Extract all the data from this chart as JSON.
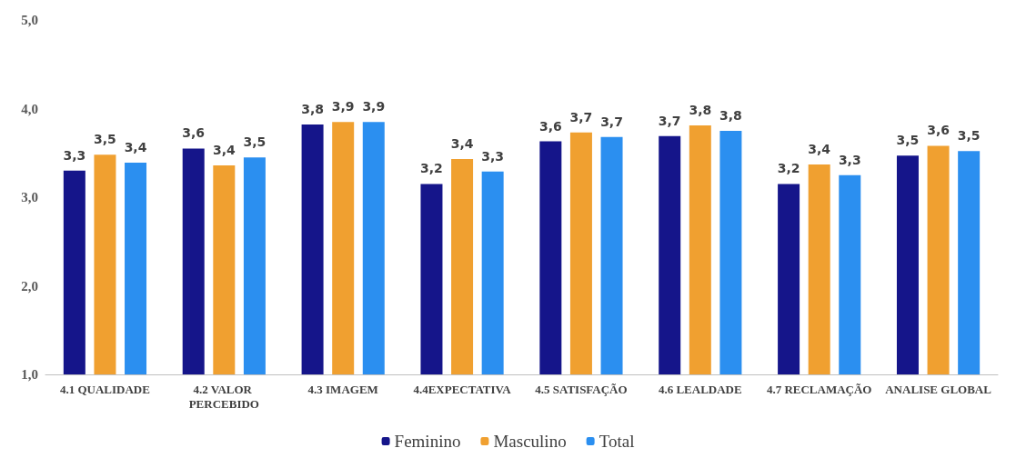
{
  "chart_data": {
    "type": "bar",
    "categories": [
      "4.1 QUALIDADE",
      "4.2 VALOR PERCEBIDO",
      "4.3 IMAGEM",
      "4.4EXPECTATIVA",
      "4.5 SATISFAÇÃO",
      "4.6 LEALDADE",
      "4.7 RECLAMAÇÃO",
      "ANALISE GLOBAL"
    ],
    "series": [
      {
        "name": "Feminino",
        "color": "#15158a",
        "values": [
          3.3,
          3.55,
          3.82,
          3.15,
          3.63,
          3.69,
          3.15,
          3.47
        ],
        "value_labels": [
          "3,3",
          "3,6",
          "3,8",
          "3,2",
          "3,6",
          "3,7",
          "3,2",
          "3,5"
        ]
      },
      {
        "name": "Masculino",
        "color": "#f0a030",
        "values": [
          3.48,
          3.36,
          3.85,
          3.43,
          3.73,
          3.81,
          3.37,
          3.58
        ],
        "value_labels": [
          "3,5",
          "3,4",
          "3,9",
          "3,4",
          "3,7",
          "3,8",
          "3,4",
          "3,6"
        ]
      },
      {
        "name": "Total",
        "color": "#2b8ff0",
        "values": [
          3.39,
          3.45,
          3.85,
          3.29,
          3.68,
          3.75,
          3.25,
          3.52
        ],
        "value_labels": [
          "3,4",
          "3,5",
          "3,9",
          "3,3",
          "3,7",
          "3,8",
          "3,3",
          "3,5"
        ]
      }
    ],
    "ylim": [
      1,
      5
    ],
    "yticks": [
      {
        "value": 1,
        "label": "1,0"
      },
      {
        "value": 2,
        "label": "2,0"
      },
      {
        "value": 3,
        "label": "3,0"
      },
      {
        "value": 4,
        "label": "4,0"
      },
      {
        "value": 5,
        "label": "5,0"
      }
    ],
    "grid": false,
    "legend": "bottom"
  }
}
